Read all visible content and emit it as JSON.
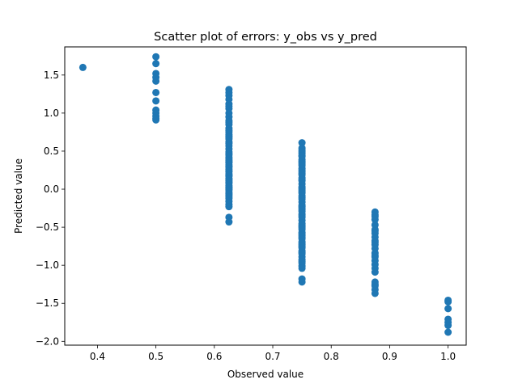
{
  "chart_data": {
    "type": "scatter",
    "title": "Scatter plot of errors: y_obs vs y_pred",
    "xlabel": "Observed value",
    "ylabel": "Predicted value",
    "xlim": [
      0.344,
      1.031
    ],
    "ylim": [
      -2.05,
      1.87
    ],
    "xticks": [
      0.4,
      0.5,
      0.6,
      0.7,
      0.8,
      0.9,
      1.0
    ],
    "xtick_labels": [
      "0.4",
      "0.5",
      "0.6",
      "0.7",
      "0.8",
      "0.9",
      "1.0"
    ],
    "yticks": [
      -2.0,
      -1.5,
      -1.0,
      -0.5,
      0.0,
      0.5,
      1.0,
      1.5
    ],
    "ytick_labels": [
      "−2.0",
      "−1.5",
      "−1.0",
      "−0.5",
      "0.0",
      "0.5",
      "1.0",
      "1.5"
    ],
    "grid": false,
    "marker_color": "#1f77b4",
    "series": [
      {
        "x": [
          0.375,
          0.5,
          0.5,
          0.5,
          0.5,
          0.5,
          0.5,
          0.5,
          0.5,
          0.5,
          0.5,
          0.5,
          0.5,
          0.625,
          0.625,
          0.625,
          0.625,
          0.625,
          0.625,
          0.625,
          0.625,
          0.625,
          0.625,
          0.625,
          0.625,
          0.625,
          0.625,
          0.625,
          0.625,
          0.625,
          0.625,
          0.625,
          0.625,
          0.625,
          0.625,
          0.625,
          0.625,
          0.625,
          0.625,
          0.625,
          0.625,
          0.625,
          0.625,
          0.625,
          0.625,
          0.625,
          0.625,
          0.625,
          0.625,
          0.625,
          0.625,
          0.625,
          0.625,
          0.625,
          0.625,
          0.625,
          0.625,
          0.625,
          0.625,
          0.625,
          0.625,
          0.625,
          0.625,
          0.625,
          0.625,
          0.625,
          0.625,
          0.625,
          0.625,
          0.625,
          0.625,
          0.625,
          0.625,
          0.75,
          0.75,
          0.75,
          0.75,
          0.75,
          0.75,
          0.75,
          0.75,
          0.75,
          0.75,
          0.75,
          0.75,
          0.75,
          0.75,
          0.75,
          0.75,
          0.75,
          0.75,
          0.75,
          0.75,
          0.75,
          0.75,
          0.75,
          0.75,
          0.75,
          0.75,
          0.75,
          0.75,
          0.75,
          0.75,
          0.75,
          0.75,
          0.75,
          0.75,
          0.75,
          0.75,
          0.75,
          0.75,
          0.75,
          0.75,
          0.75,
          0.75,
          0.75,
          0.75,
          0.75,
          0.75,
          0.75,
          0.75,
          0.75,
          0.75,
          0.75,
          0.75,
          0.75,
          0.75,
          0.75,
          0.75,
          0.75,
          0.75,
          0.75,
          0.75,
          0.75,
          0.75,
          0.75,
          0.75,
          0.75,
          0.875,
          0.875,
          0.875,
          0.875,
          0.875,
          0.875,
          0.875,
          0.875,
          0.875,
          0.875,
          0.875,
          0.875,
          0.875,
          0.875,
          0.875,
          0.875,
          0.875,
          0.875,
          0.875,
          0.875,
          0.875,
          0.875,
          0.875,
          0.875,
          0.875,
          1.0,
          1.0,
          1.0,
          1.0,
          1.0,
          1.0,
          1.0
        ],
        "y": [
          1.6,
          1.74,
          1.65,
          1.52,
          1.47,
          1.42,
          1.27,
          1.16,
          1.04,
          1.0,
          0.96,
          0.93,
          0.91,
          1.31,
          1.27,
          1.23,
          1.18,
          1.12,
          1.06,
          1.0,
          0.95,
          0.9,
          0.85,
          0.8,
          0.75,
          0.7,
          0.66,
          0.62,
          0.57,
          0.53,
          0.49,
          0.45,
          0.42,
          0.38,
          0.35,
          0.32,
          0.29,
          0.26,
          0.23,
          0.2,
          0.17,
          0.14,
          0.11,
          0.08,
          0.05,
          0.02,
          -0.01,
          -0.04,
          -0.08,
          -0.12,
          -0.16,
          -0.2,
          -0.23,
          -0.37,
          -0.43,
          0.88,
          0.72,
          0.4,
          0.3,
          0.18,
          0.09,
          0.0,
          -0.06,
          0.6,
          0.36,
          0.24,
          0.13,
          0.03,
          -0.1,
          0.47,
          0.68,
          0.77,
          1.09,
          0.61,
          0.54,
          0.51,
          0.47,
          0.43,
          0.39,
          0.35,
          0.31,
          0.27,
          0.23,
          0.19,
          0.15,
          0.11,
          0.07,
          0.03,
          -0.01,
          -0.05,
          -0.09,
          -0.13,
          -0.17,
          -0.21,
          -0.25,
          -0.29,
          -0.33,
          -0.37,
          -0.41,
          -0.45,
          -0.49,
          -0.53,
          -0.57,
          -0.61,
          -0.65,
          -0.69,
          -0.73,
          -0.77,
          -0.81,
          -0.85,
          -0.89,
          -0.93,
          -0.97,
          -1.01,
          -1.04,
          -1.18,
          -1.22,
          0.49,
          0.37,
          0.25,
          0.13,
          0.01,
          -0.11,
          -0.23,
          -0.35,
          -0.47,
          -0.59,
          -0.71,
          -0.83,
          -0.95,
          0.44,
          0.21,
          -0.03,
          -0.27,
          -0.51,
          -0.75,
          0.33,
          -0.63,
          -0.3,
          -0.34,
          -0.4,
          -0.47,
          -0.53,
          -0.58,
          -0.63,
          -0.68,
          -0.73,
          -0.78,
          -0.84,
          -0.89,
          -0.94,
          -0.99,
          -1.04,
          -1.09,
          -1.22,
          -1.27,
          -1.32,
          -1.37,
          -0.36,
          -0.55,
          -0.7,
          -0.87,
          -1.25,
          -1.46,
          -1.48,
          -1.57,
          -1.71,
          -1.75,
          -1.79,
          -1.88
        ]
      }
    ]
  }
}
